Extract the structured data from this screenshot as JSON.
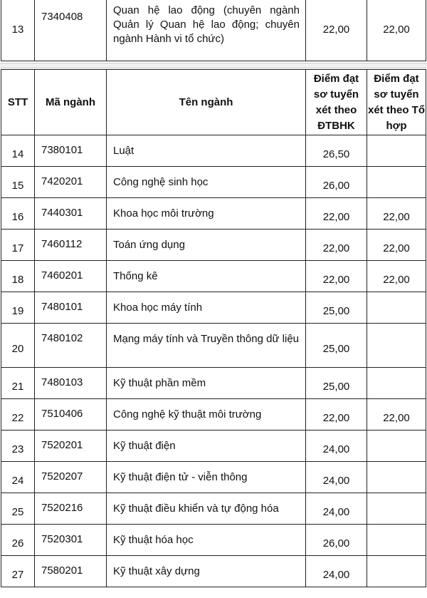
{
  "top_rows": [
    {
      "stt": "13",
      "ma": "7340408",
      "ten": "Quan hệ lao động (chuyên ngành Quản lý Quan hệ lao động; chuyên ngành Hành vi tổ chức)",
      "dtbhk": "22,00",
      "tohop": "22,00"
    }
  ],
  "header": {
    "stt": "STT",
    "ma": "Mã ngành",
    "ten": "Tên ngành",
    "dtbhk": "Điểm đạt sơ tuyển xét theo ĐTBHK",
    "tohop": "Điểm đạt sơ tuyển xét theo Tổ hợp"
  },
  "rows": [
    {
      "stt": "14",
      "ma": "7380101",
      "ten": "Luật",
      "dtbhk": "26,50",
      "tohop": ""
    },
    {
      "stt": "15",
      "ma": "7420201",
      "ten": "Công nghệ sinh học",
      "dtbhk": "26,00",
      "tohop": ""
    },
    {
      "stt": "16",
      "ma": "7440301",
      "ten": "Khoa học môi trường",
      "dtbhk": "22,00",
      "tohop": "22,00"
    },
    {
      "stt": "17",
      "ma": "7460112",
      "ten": "Toán ứng dụng",
      "dtbhk": "22,00",
      "tohop": "22,00"
    },
    {
      "stt": "18",
      "ma": "7460201",
      "ten": "Thống kê",
      "dtbhk": "22,00",
      "tohop": "22,00"
    },
    {
      "stt": "19",
      "ma": "7480101",
      "ten": "Khoa học máy tính",
      "dtbhk": "25,00",
      "tohop": ""
    },
    {
      "stt": "20",
      "ma": "7480102",
      "ten": "Mạng máy tính và Truyền thông dữ liệu",
      "dtbhk": "25,00",
      "tohop": ""
    },
    {
      "stt": "21",
      "ma": "7480103",
      "ten": "Kỹ thuật phần mềm",
      "dtbhk": "25,00",
      "tohop": ""
    },
    {
      "stt": "22",
      "ma": "7510406",
      "ten": "Công nghệ kỹ thuật môi trường",
      "dtbhk": "22,00",
      "tohop": "22,00"
    },
    {
      "stt": "23",
      "ma": "7520201",
      "ten": "Kỹ thuật điện",
      "dtbhk": "24,00",
      "tohop": ""
    },
    {
      "stt": "24",
      "ma": "7520207",
      "ten": "Kỹ thuật điện tử - viễn thông",
      "dtbhk": "24,00",
      "tohop": ""
    },
    {
      "stt": "25",
      "ma": "7520216",
      "ten": "Kỹ thuật điều khiển và tự động hóa",
      "dtbhk": "24,00",
      "tohop": ""
    },
    {
      "stt": "26",
      "ma": "7520301",
      "ten": "Kỹ thuật hóa học",
      "dtbhk": "26,00",
      "tohop": ""
    },
    {
      "stt": "27",
      "ma": "7580201",
      "ten": "Kỹ thuật  xây dựng",
      "dtbhk": "24,00",
      "tohop": ""
    }
  ]
}
